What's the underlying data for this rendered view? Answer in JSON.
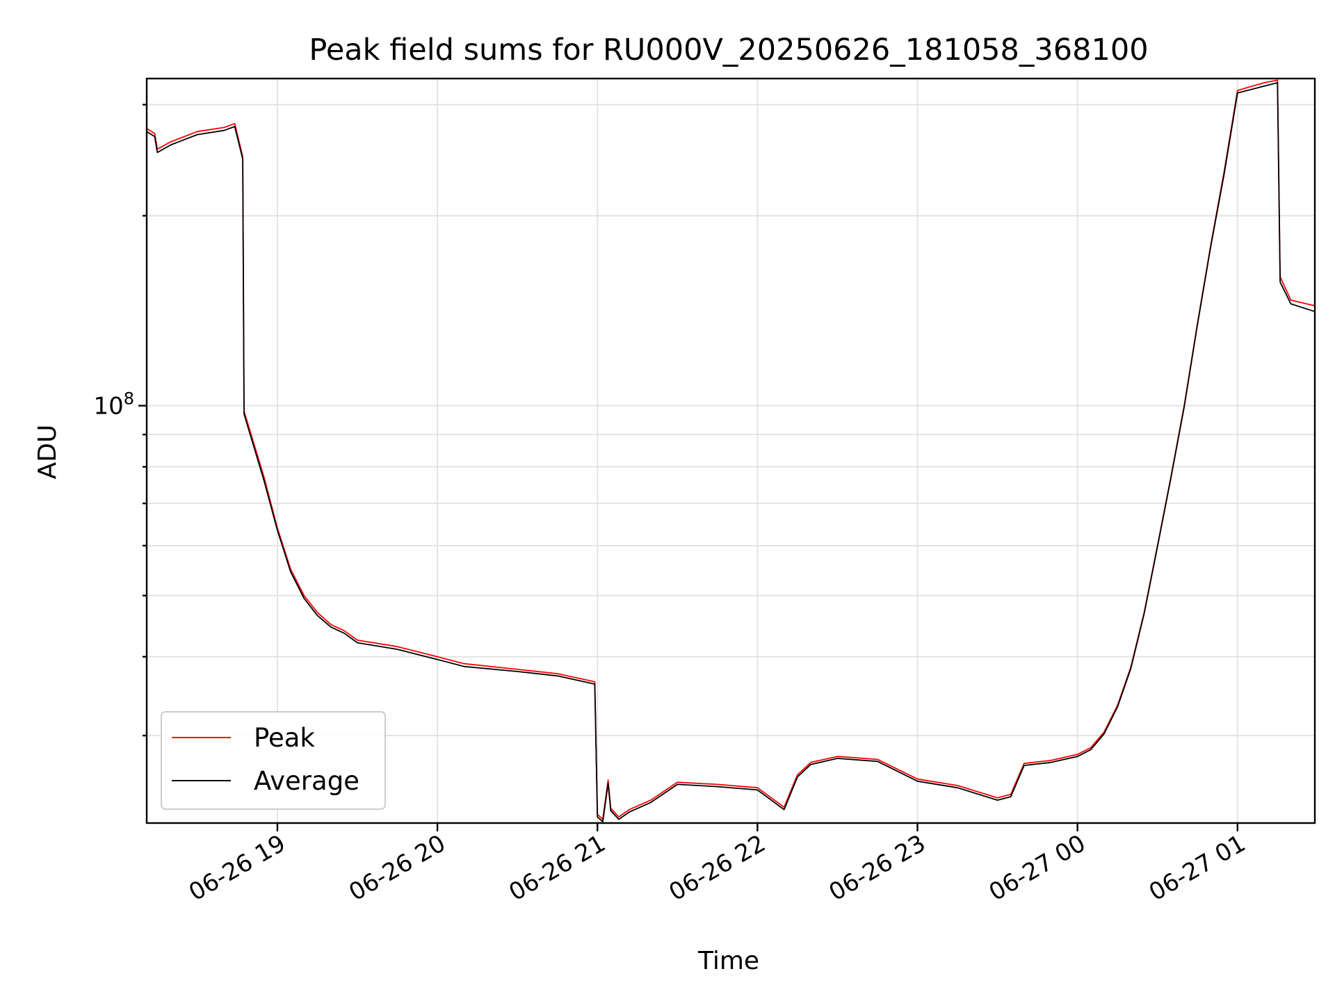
{
  "chart_data": {
    "type": "line",
    "title": "Peak field sums for RU000V_20250626_181058_368100",
    "xlabel": "Time",
    "ylabel": "ADU",
    "yscale": "log",
    "ylim": [
      21800000,
      330000000
    ],
    "xlim": [
      "2025-06-26 18:11",
      "2025-06-27 01:29"
    ],
    "grid": true,
    "legend": "lower-left",
    "x_ticks": [
      {
        "t": "2025-06-26 19:00",
        "label": "06-26 19"
      },
      {
        "t": "2025-06-26 20:00",
        "label": "06-26 20"
      },
      {
        "t": "2025-06-26 21:00",
        "label": "06-26 21"
      },
      {
        "t": "2025-06-26 22:00",
        "label": "06-26 22"
      },
      {
        "t": "2025-06-26 23:00",
        "label": "06-26 23"
      },
      {
        "t": "2025-06-27 00:00",
        "label": "06-27 00"
      },
      {
        "t": "2025-06-27 01:00",
        "label": "06-27 01"
      }
    ],
    "y_ticks": [
      {
        "value": 100000000,
        "base": "10",
        "exp": "8"
      }
    ],
    "series": [
      {
        "name": "Peak",
        "color": "#ff0000",
        "x": [
          "2025-06-26 18:11",
          "2025-06-26 18:14",
          "2025-06-26 18:15",
          "2025-06-26 18:20",
          "2025-06-26 18:30",
          "2025-06-26 18:40",
          "2025-06-26 18:44",
          "2025-06-26 18:47",
          "2025-06-26 18:47:30",
          "2025-06-26 18:55",
          "2025-06-26 19:00",
          "2025-06-26 19:05",
          "2025-06-26 19:10",
          "2025-06-26 19:15",
          "2025-06-26 19:20",
          "2025-06-26 19:25",
          "2025-06-26 19:30",
          "2025-06-26 19:45",
          "2025-06-26 20:00",
          "2025-06-26 20:10",
          "2025-06-26 20:30",
          "2025-06-26 20:45",
          "2025-06-26 20:59",
          "2025-06-26 21:00",
          "2025-06-26 21:02",
          "2025-06-26 21:04",
          "2025-06-26 21:05",
          "2025-06-26 21:08",
          "2025-06-26 21:12",
          "2025-06-26 21:20",
          "2025-06-26 21:30",
          "2025-06-26 21:45",
          "2025-06-26 22:00",
          "2025-06-26 22:10",
          "2025-06-26 22:15",
          "2025-06-26 22:20",
          "2025-06-26 22:30",
          "2025-06-26 22:45",
          "2025-06-26 23:00",
          "2025-06-26 23:15",
          "2025-06-26 23:30",
          "2025-06-26 23:35",
          "2025-06-26 23:40",
          "2025-06-26 23:50",
          "2025-06-27 00:00",
          "2025-06-27 00:05",
          "2025-06-27 00:10",
          "2025-06-27 00:15",
          "2025-06-27 00:20",
          "2025-06-27 00:25",
          "2025-06-27 00:30",
          "2025-06-27 00:35",
          "2025-06-27 00:40",
          "2025-06-27 00:45",
          "2025-06-27 00:50",
          "2025-06-27 00:55",
          "2025-06-27 01:00",
          "2025-06-27 01:10",
          "2025-06-27 01:15",
          "2025-06-27 01:16",
          "2025-06-27 01:20",
          "2025-06-27 01:29"
        ],
        "y": [
          275000000,
          270000000,
          255000000,
          262000000,
          272000000,
          276000000,
          280000000,
          248000000,
          98000000,
          77000000,
          64000000,
          55000000,
          50000000,
          47000000,
          45000000,
          44000000,
          42500000,
          41500000,
          40000000,
          39000000,
          38200000,
          37600000,
          36500000,
          22500000,
          22100000,
          25500000,
          23000000,
          22300000,
          22900000,
          23700000,
          25300000,
          25100000,
          24800000,
          23100000,
          26000000,
          27200000,
          27800000,
          27500000,
          25600000,
          25000000,
          23900000,
          24200000,
          27100000,
          27400000,
          28000000,
          28700000,
          30400000,
          33500000,
          38500000,
          47000000,
          60000000,
          77000000,
          100000000,
          135000000,
          180000000,
          235000000,
          316000000,
          325000000,
          328000000,
          160000000,
          147000000,
          144000000
        ]
      },
      {
        "name": "Average",
        "color": "#000000",
        "x": [
          "2025-06-26 18:11",
          "2025-06-26 18:14",
          "2025-06-26 18:15",
          "2025-06-26 18:20",
          "2025-06-26 18:30",
          "2025-06-26 18:40",
          "2025-06-26 18:44",
          "2025-06-26 18:47",
          "2025-06-26 18:47:30",
          "2025-06-26 18:55",
          "2025-06-26 19:00",
          "2025-06-26 19:05",
          "2025-06-26 19:10",
          "2025-06-26 19:15",
          "2025-06-26 19:20",
          "2025-06-26 19:25",
          "2025-06-26 19:30",
          "2025-06-26 19:45",
          "2025-06-26 20:00",
          "2025-06-26 20:10",
          "2025-06-26 20:30",
          "2025-06-26 20:45",
          "2025-06-26 20:59",
          "2025-06-26 21:00",
          "2025-06-26 21:02",
          "2025-06-26 21:04",
          "2025-06-26 21:05",
          "2025-06-26 21:08",
          "2025-06-26 21:12",
          "2025-06-26 21:20",
          "2025-06-26 21:30",
          "2025-06-26 21:45",
          "2025-06-26 22:00",
          "2025-06-26 22:10",
          "2025-06-26 22:15",
          "2025-06-26 22:20",
          "2025-06-26 22:30",
          "2025-06-26 22:45",
          "2025-06-26 23:00",
          "2025-06-26 23:15",
          "2025-06-26 23:30",
          "2025-06-26 23:35",
          "2025-06-26 23:40",
          "2025-06-26 23:50",
          "2025-06-27 00:00",
          "2025-06-27 00:05",
          "2025-06-27 00:10",
          "2025-06-27 00:15",
          "2025-06-27 00:20",
          "2025-06-27 00:25",
          "2025-06-27 00:30",
          "2025-06-27 00:35",
          "2025-06-27 00:40",
          "2025-06-27 00:45",
          "2025-06-27 00:50",
          "2025-06-27 00:55",
          "2025-06-27 01:00",
          "2025-06-27 01:10",
          "2025-06-27 01:15",
          "2025-06-27 01:16",
          "2025-06-27 01:20",
          "2025-06-27 01:29"
        ],
        "y": [
          272000000,
          267000000,
          252000000,
          259000000,
          269000000,
          273000000,
          277000000,
          246000000,
          97000000,
          76000000,
          63500000,
          54500000,
          49500000,
          46500000,
          44600000,
          43600000,
          42100000,
          41100000,
          39600000,
          38600000,
          37900000,
          37300000,
          36200000,
          22300000,
          21900000,
          25200000,
          22800000,
          22100000,
          22700000,
          23500000,
          25100000,
          24900000,
          24600000,
          22900000,
          25800000,
          27000000,
          27600000,
          27300000,
          25400000,
          24800000,
          23700000,
          24000000,
          26900000,
          27200000,
          27800000,
          28500000,
          30200000,
          33300000,
          38300000,
          46800000,
          59800000,
          76700000,
          99500000,
          134500000,
          179000000,
          233000000,
          313000000,
          321000000,
          325000000,
          157000000,
          145000000,
          141000000
        ]
      }
    ]
  }
}
